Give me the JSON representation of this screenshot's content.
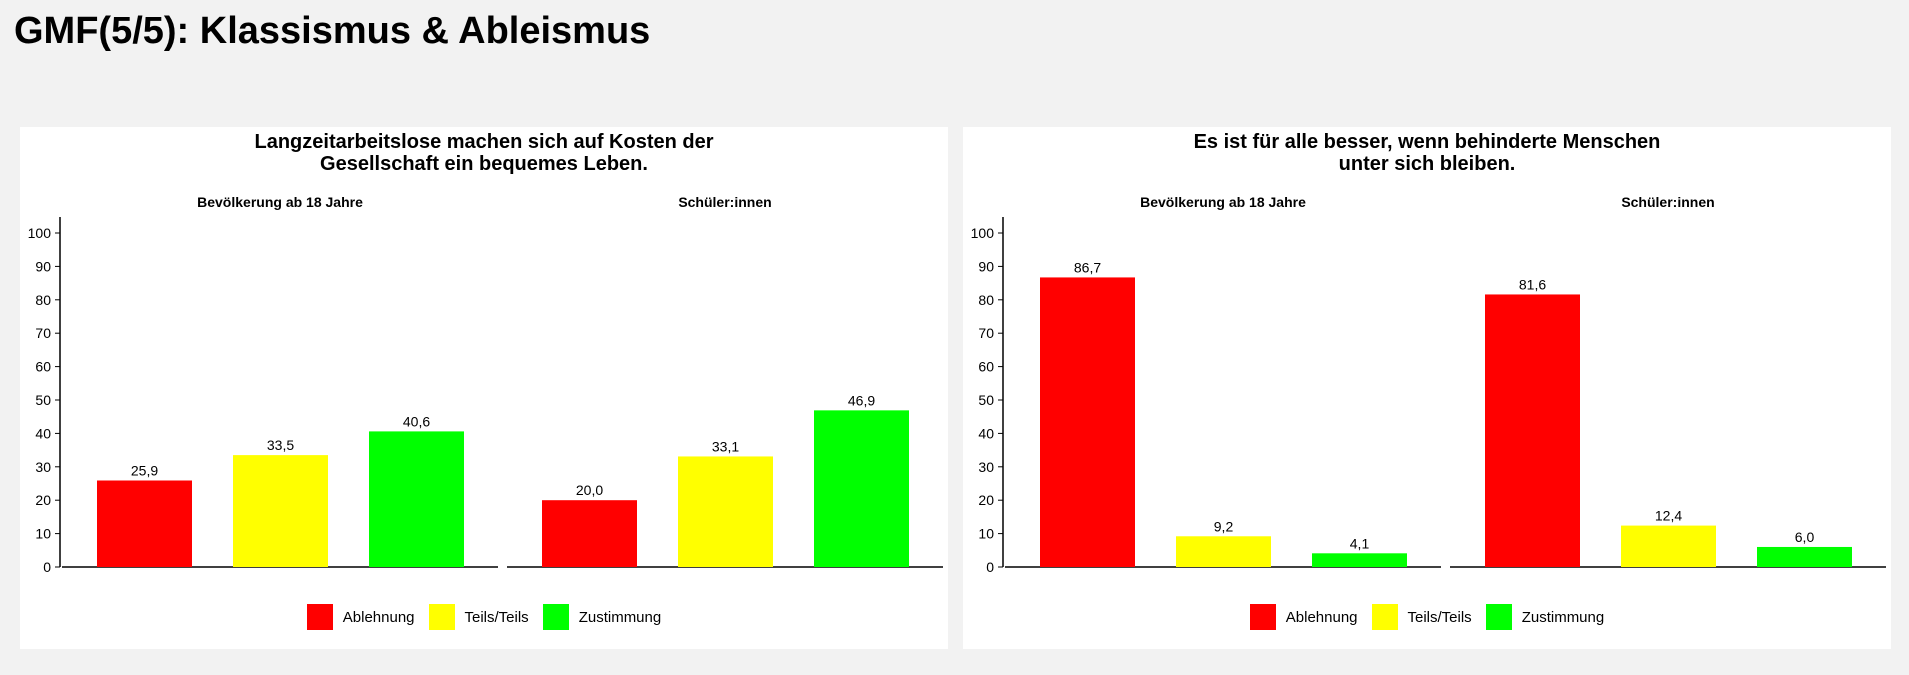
{
  "page": {
    "title": "GMF(5/5): Klassismus & Ableismus"
  },
  "colors": {
    "Ablehnung": "#ff0000",
    "Teils/Teils": "#ffff00",
    "Zustimmung": "#00ff00"
  },
  "chart_data": [
    {
      "type": "bar",
      "title_lines": [
        "Langzeitarbeitslose machen sich auf Kosten der",
        "Gesellschaft ein bequemes Leben."
      ],
      "categories": [
        "Ablehnung",
        "Teils/Teils",
        "Zustimmung"
      ],
      "facets": [
        {
          "name": "Bevölkerung ab 18 Jahre",
          "values": [
            25.9,
            33.5,
            40.6
          ],
          "labels": [
            "25,9",
            "33,5",
            "40,6"
          ]
        },
        {
          "name": "Schüler:innen",
          "values": [
            20.0,
            33.1,
            46.9
          ],
          "labels": [
            "20,0",
            "33,1",
            "46,9"
          ]
        }
      ],
      "ylim": [
        0,
        100
      ],
      "yticks": [
        "0",
        "10",
        "20",
        "30",
        "40",
        "50",
        "60",
        "70",
        "80",
        "90",
        "100"
      ],
      "legend": [
        "Ablehnung",
        "Teils/Teils",
        "Zustimmung"
      ],
      "legend_position": "bottom"
    },
    {
      "type": "bar",
      "title_lines": [
        "Es ist für alle besser, wenn behinderte Menschen",
        "unter sich bleiben."
      ],
      "categories": [
        "Ablehnung",
        "Teils/Teils",
        "Zustimmung"
      ],
      "facets": [
        {
          "name": "Bevölkerung ab 18 Jahre",
          "values": [
            86.7,
            9.2,
            4.1
          ],
          "labels": [
            "86,7",
            "9,2",
            "4,1"
          ]
        },
        {
          "name": "Schüler:innen",
          "values": [
            81.6,
            12.4,
            6.0
          ],
          "labels": [
            "81,6",
            "12,4",
            "6,0"
          ]
        }
      ],
      "ylim": [
        0,
        100
      ],
      "yticks": [
        "0",
        "10",
        "20",
        "30",
        "40",
        "50",
        "60",
        "70",
        "80",
        "90",
        "100"
      ],
      "legend": [
        "Ablehnung",
        "Teils/Teils",
        "Zustimmung"
      ],
      "legend_position": "bottom"
    }
  ]
}
